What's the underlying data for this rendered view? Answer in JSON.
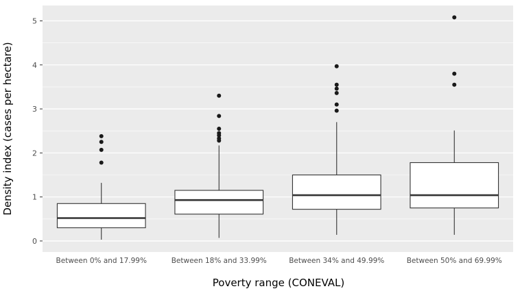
{
  "chart_data": {
    "type": "boxplot",
    "title": "",
    "xlabel": "Poverty range (CONEVAL)",
    "ylabel": "Density index (cases per hectare)",
    "ylim": [
      -0.25,
      5.35
    ],
    "yticks": [
      0,
      1,
      2,
      3,
      4,
      5
    ],
    "grid": "major-and-minor",
    "legend": "none",
    "panel_bg": "#EBEBEB",
    "grid_color": "#FFFFFF",
    "box_fill": "#FFFFFF",
    "box_stroke": "#333333",
    "outlier_color": "#1A1A1A",
    "tick_label_color": "#4D4D4D",
    "axis_title_color": "#000000",
    "categories": [
      "Between 0% and 17.99%",
      "Between 18% and 33.99%",
      "Between 34% and 49.99%",
      "Between 50% and 69.99%"
    ],
    "boxes": [
      {
        "category": "Between 0% and 17.99%",
        "whisker_low": 0.03,
        "q1": 0.3,
        "median": 0.52,
        "q3": 0.85,
        "whisker_high": 1.32,
        "outliers": [
          1.78,
          2.07,
          2.25,
          2.38
        ]
      },
      {
        "category": "Between 18% and 33.99%",
        "whisker_low": 0.07,
        "q1": 0.61,
        "median": 0.93,
        "q3": 1.15,
        "whisker_high": 2.17,
        "outliers": [
          2.28,
          2.33,
          2.4,
          2.45,
          2.55,
          2.84,
          3.3
        ]
      },
      {
        "category": "Between 34% and 49.99%",
        "whisker_low": 0.14,
        "q1": 0.72,
        "median": 1.04,
        "q3": 1.5,
        "whisker_high": 2.7,
        "outliers": [
          2.96,
          3.1,
          3.36,
          3.46,
          3.55,
          3.97
        ]
      },
      {
        "category": "Between 50% and 69.99%",
        "whisker_low": 0.14,
        "q1": 0.75,
        "median": 1.04,
        "q3": 1.78,
        "whisker_high": 2.51,
        "outliers": [
          3.55,
          3.8,
          5.08
        ]
      }
    ]
  }
}
